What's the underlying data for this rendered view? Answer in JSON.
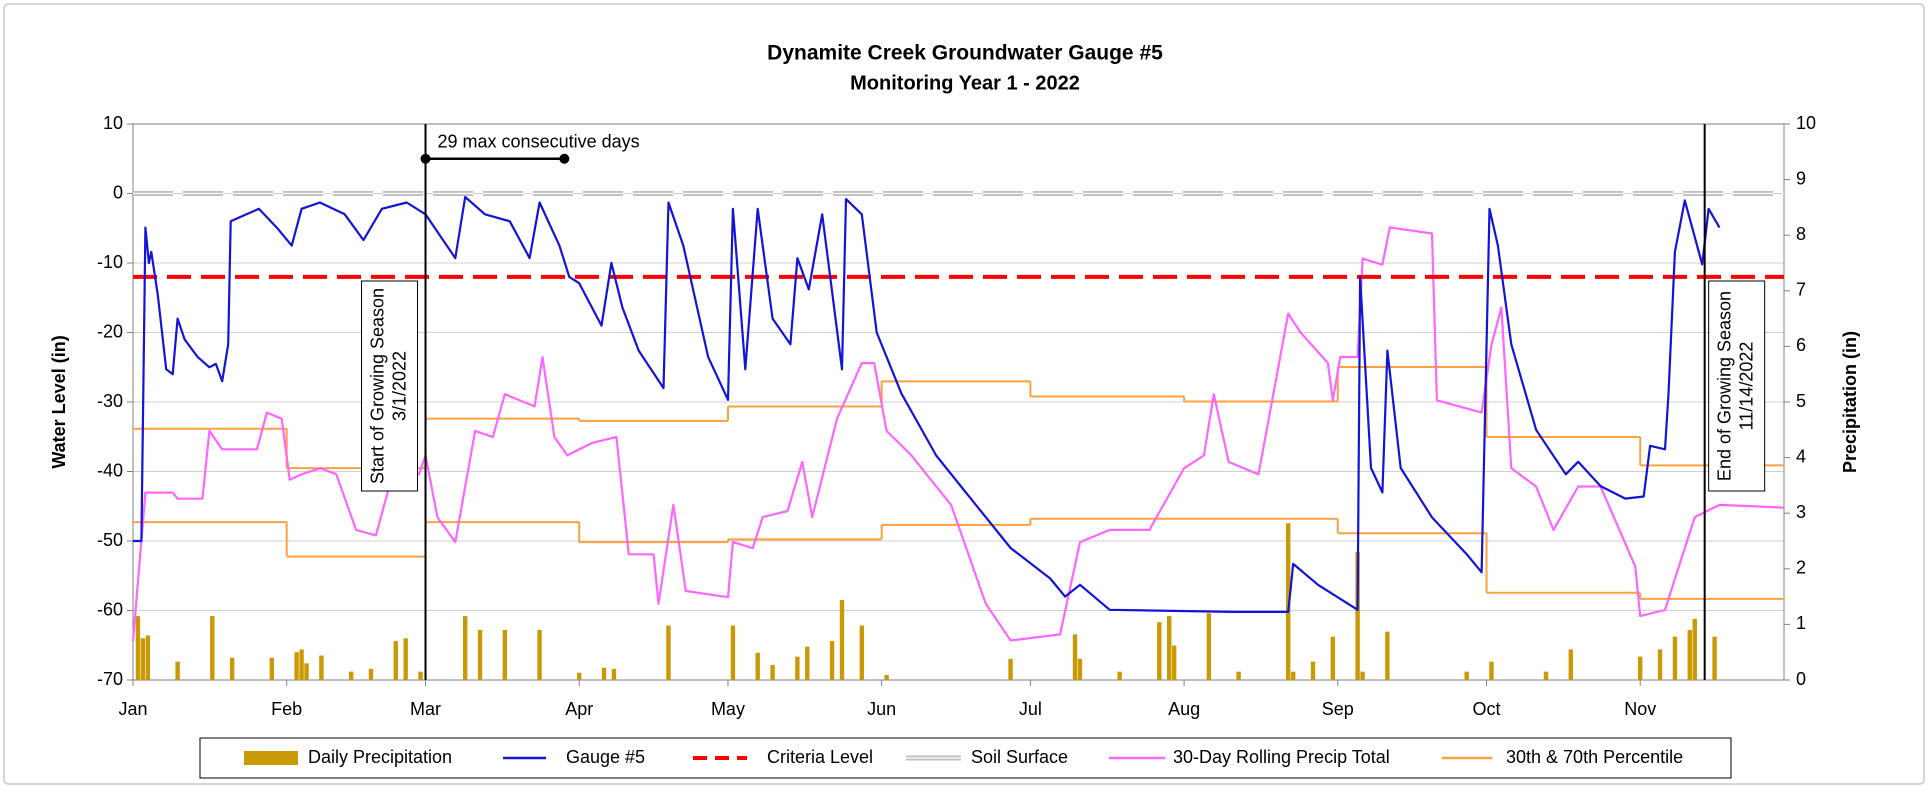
{
  "chart_data": {
    "type": "combo",
    "title": "Dynamite Creek Groundwater Gauge #5",
    "subtitle": "Monitoring Year 1 - 2022",
    "y_label": "Water Level (in)",
    "y2_label": "Precipitation (in)",
    "xlim": [
      1,
      334
    ],
    "xticks": [
      {
        "value": 1,
        "label": "Jan"
      },
      {
        "value": 32,
        "label": "Feb"
      },
      {
        "value": 60,
        "label": "Mar"
      },
      {
        "value": 91,
        "label": "Apr"
      },
      {
        "value": 121,
        "label": "May"
      },
      {
        "value": 152,
        "label": "Jun"
      },
      {
        "value": 182,
        "label": "Jul"
      },
      {
        "value": 213,
        "label": "Aug"
      },
      {
        "value": 244,
        "label": "Sep"
      },
      {
        "value": 274,
        "label": "Oct"
      },
      {
        "value": 305,
        "label": "Nov"
      }
    ],
    "ylim": [
      -70,
      10
    ],
    "yticks": [
      -70,
      -60,
      -50,
      -40,
      -30,
      -20,
      -10,
      0,
      10
    ],
    "y2lim": [
      0,
      10
    ],
    "y2ticks": [
      0,
      1,
      2,
      3,
      4,
      5,
      6,
      7,
      8,
      9,
      10
    ],
    "grid": true,
    "series": [
      {
        "name": "Daily Precipitation",
        "style": "bar",
        "axis": "y2",
        "color": "#c99a06",
        "x": [
          2,
          3,
          4,
          10,
          17,
          21,
          29,
          34,
          35,
          36,
          39,
          45,
          49,
          54,
          56,
          59,
          68,
          71,
          76,
          83,
          91,
          96,
          98,
          109,
          122,
          127,
          130,
          135,
          137,
          142,
          144,
          148,
          153,
          178,
          191,
          192,
          200,
          208,
          210,
          211,
          218,
          224,
          234,
          235,
          239,
          243,
          248,
          249,
          254,
          270,
          275,
          286,
          291,
          305,
          309,
          312,
          315,
          316,
          320
        ],
        "values": [
          1.15,
          0.75,
          0.8,
          0.33,
          1.15,
          0.4,
          0.4,
          0.5,
          0.55,
          0.3,
          0.44,
          0.15,
          0.2,
          0.7,
          0.75,
          0.15,
          1.15,
          0.9,
          0.9,
          0.9,
          0.13,
          0.22,
          0.2,
          0.98,
          0.98,
          0.49,
          0.27,
          0.42,
          0.6,
          0.7,
          1.44,
          0.98,
          0.09,
          0.38,
          0.82,
          0.38,
          0.15,
          1.04,
          1.15,
          0.62,
          1.2,
          0.15,
          2.82,
          0.15,
          0.33,
          0.78,
          2.3,
          0.15,
          0.87,
          0.15,
          0.33,
          0.15,
          0.55,
          0.42,
          0.55,
          0.78,
          0.9,
          1.1,
          0.78
        ]
      },
      {
        "name": "Gauge #5",
        "style": "line",
        "axis": "y",
        "color": "#1414d8",
        "x": [
          1,
          2.7,
          3.5,
          4.2,
          4.7,
          6,
          7.7,
          9,
          10,
          11.4,
          14,
          16.4,
          17.7,
          19,
          20.2,
          20.7,
          23.9,
          26.4,
          30,
          33,
          35,
          38.7,
          43.7,
          47.5,
          51.2,
          56.2,
          60,
          66,
          68,
          72,
          77,
          81,
          83,
          87,
          89,
          91,
          95.5,
          97.5,
          99.7,
          103,
          108,
          109,
          112,
          117,
          121,
          122,
          124.5,
          127,
          130,
          133.6,
          135,
          137.3,
          140,
          144,
          144.8,
          148,
          151,
          156,
          163,
          171,
          178,
          186,
          189,
          192,
          198,
          223,
          234,
          235,
          240,
          248,
          248.5,
          250.7,
          253,
          254,
          256.7,
          263,
          270,
          273,
          274.6,
          276.3,
          279,
          284,
          290,
          292.5,
          297,
          302,
          305.7,
          307,
          310,
          310.7,
          312,
          314,
          317.5,
          318.8,
          321
        ],
        "values": [
          -50,
          -50,
          -4.9,
          -10,
          -8.4,
          -14.6,
          -25.3,
          -26,
          -18,
          -21,
          -23.5,
          -25,
          -24.5,
          -27,
          -21.7,
          -4,
          -3,
          -2.2,
          -4.9,
          -7.5,
          -2.2,
          -1.3,
          -3,
          -6.7,
          -2.2,
          -1.3,
          -3,
          -9.3,
          -0.5,
          -3,
          -4,
          -9.3,
          -1.3,
          -7.5,
          -12,
          -12.9,
          -19,
          -10,
          -16.4,
          -22.6,
          -28,
          -1.3,
          -7.5,
          -23.5,
          -29.7,
          -2.2,
          -25.3,
          -2.2,
          -18,
          -21.7,
          -9.3,
          -13.8,
          -3,
          -25.3,
          -0.8,
          -3,
          -20,
          -28.8,
          -37.7,
          -44.8,
          -51,
          -55.4,
          -58,
          -56.3,
          -59.9,
          -60.2,
          -60.2,
          -53.3,
          -56.3,
          -59.9,
          -12,
          -39.5,
          -43,
          -22.6,
          -39.5,
          -46.6,
          -51.9,
          -54.5,
          -2.2,
          -7.5,
          -21.7,
          -34,
          -40.4,
          -38.6,
          -42.1,
          -43.9,
          -43.6,
          -36.3,
          -36.8,
          -28.8,
          -8.4,
          -1,
          -10.2,
          -2.2,
          -4.9
        ]
      },
      {
        "name": "Criteria Level",
        "style": "dashed",
        "axis": "y",
        "color": "#ff0000",
        "x": [
          1,
          334
        ],
        "values": [
          -12,
          -12
        ]
      },
      {
        "name": "Soil Surface",
        "style": "double-dashed",
        "axis": "y",
        "color": "#bfbfbf",
        "x": [
          1,
          334
        ],
        "values": [
          0,
          0
        ]
      },
      {
        "name": "30-Day Rolling Precip Total",
        "style": "line",
        "axis": "y2",
        "color": "#ff66ff",
        "x": [
          1,
          3.5,
          9,
          10,
          15,
          16.4,
          19,
          26,
          28,
          31,
          32.6,
          35,
          38.8,
          42,
          46,
          50,
          53.7,
          58.7,
          60,
          62.4,
          66,
          70,
          73.6,
          76,
          82,
          83.6,
          86,
          88.6,
          93.5,
          98.5,
          101,
          106,
          107,
          110,
          112.5,
          121,
          122,
          126,
          128,
          133,
          136,
          138,
          143,
          148,
          150.5,
          153,
          158,
          166,
          173,
          178,
          188,
          192,
          198,
          206,
          213,
          217,
          219,
          222,
          228,
          234,
          236.5,
          242,
          243,
          244.5,
          248,
          249,
          253,
          254.5,
          263,
          264,
          273,
          275,
          277,
          279,
          284,
          287.5,
          292.5,
          297,
          304,
          305,
          310,
          312,
          316,
          321,
          334
        ],
        "values": [
          0.7,
          3.37,
          3.37,
          3.26,
          3.26,
          4.48,
          4.15,
          4.15,
          4.81,
          4.7,
          3.6,
          3.7,
          3.81,
          3.7,
          2.7,
          2.6,
          3.81,
          3.7,
          4.04,
          2.93,
          2.48,
          4.48,
          4.37,
          5.14,
          4.92,
          5.81,
          4.37,
          4.04,
          4.26,
          4.37,
          2.26,
          2.26,
          1.37,
          3.15,
          1.6,
          1.49,
          2.48,
          2.37,
          2.93,
          3.04,
          3.92,
          2.93,
          4.7,
          5.7,
          5.7,
          4.48,
          4.04,
          3.15,
          1.37,
          0.71,
          0.82,
          2.48,
          2.7,
          2.7,
          3.81,
          4.04,
          5.14,
          3.92,
          3.7,
          6.59,
          6.25,
          5.7,
          5.03,
          5.81,
          5.81,
          7.58,
          7.47,
          8.14,
          8.03,
          5.03,
          4.81,
          6.03,
          6.7,
          3.81,
          3.48,
          2.7,
          3.48,
          3.48,
          2.04,
          1.15,
          1.26,
          1.82,
          2.93,
          3.15,
          3.1
        ]
      },
      {
        "name": "30th & 70th Percentile",
        "style": "step",
        "axis": "y2",
        "color": "#ffa040",
        "x": [
          1,
          32,
          60,
          91,
          121,
          152,
          182,
          213,
          244,
          274,
          305
        ],
        "values": [
          4.52,
          3.81,
          4.7,
          4.66,
          4.92,
          5.37,
          5.1,
          5.01,
          5.63,
          4.37,
          3.86
        ],
        "values_low": [
          2.84,
          2.22,
          2.84,
          2.48,
          2.53,
          2.79,
          2.9,
          2.9,
          2.64,
          1.57,
          1.46
        ]
      }
    ],
    "annotations": [
      {
        "text": "29 max consecutive days",
        "x": [
          60,
          88
        ],
        "y": 5
      },
      {
        "lines": [
          "Start of Growing Season",
          "3/1/2022"
        ],
        "x": 60,
        "side": "left"
      },
      {
        "lines": [
          "End of Growing Season",
          "11/14/2022"
        ],
        "x": 318,
        "side": "right"
      }
    ]
  }
}
